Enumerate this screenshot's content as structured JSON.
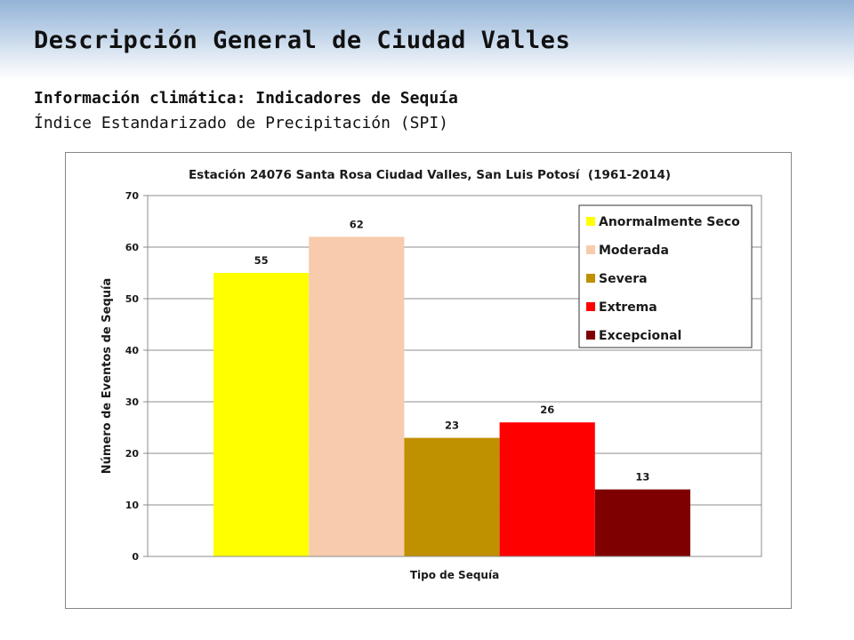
{
  "slide": {
    "title": "Descripción General de Ciudad Valles",
    "subtitle_1": "Información climática: Indicadores de Sequía",
    "subtitle_2": "Índice Estandarizado de Precipitación (SPI)"
  },
  "chart_data": {
    "type": "bar",
    "title": "Estación 24076 Santa Rosa Ciudad Valles, San Luis Potosí  (1961-2014)",
    "xlabel": "Tipo de Sequía",
    "ylabel": "Número de Eventos de Sequía",
    "ylim": [
      0,
      70
    ],
    "yticks": [
      0,
      10,
      20,
      30,
      40,
      50,
      60,
      70
    ],
    "grid": true,
    "legend_position": "top-right",
    "series": [
      {
        "name": "Anormalmente Seco",
        "value": 55,
        "color": "#ffff00"
      },
      {
        "name": "Moderada",
        "value": 62,
        "color": "#f8cbad"
      },
      {
        "name": "Severa",
        "value": 23,
        "color": "#bf9000"
      },
      {
        "name": "Extrema",
        "value": 26,
        "color": "#ff0000"
      },
      {
        "name": "Excepcional",
        "value": 13,
        "color": "#7f0000"
      }
    ]
  }
}
